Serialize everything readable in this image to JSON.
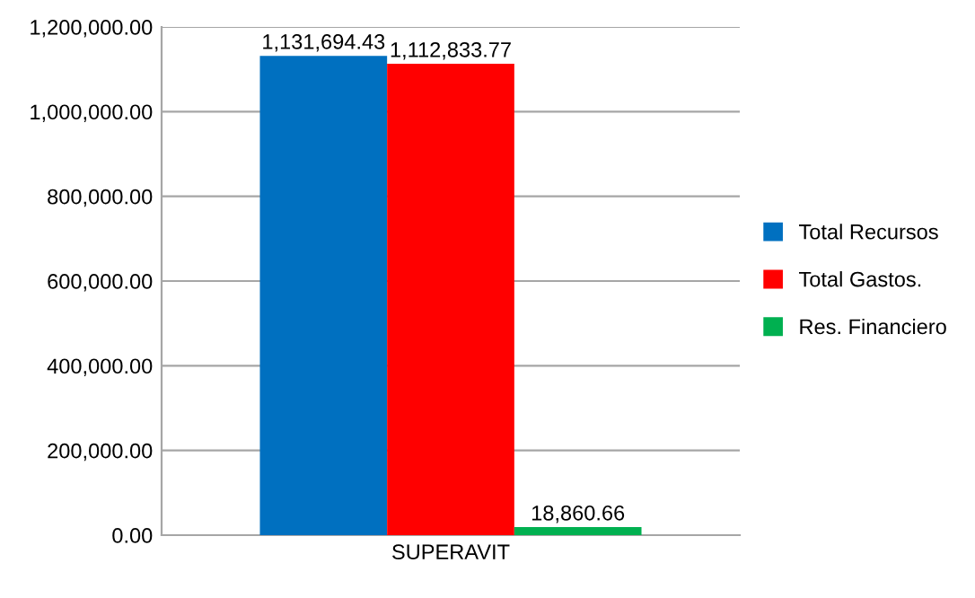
{
  "chart_data": {
    "type": "bar",
    "categories": [
      "SUPERAVIT"
    ],
    "series": [
      {
        "name": "Total Recursos",
        "color": "#0070c0",
        "values": [
          1131694.43
        ],
        "value_labels": [
          "1,131,694.43"
        ]
      },
      {
        "name": "Total Gastos.",
        "color": "#ff0000",
        "values": [
          1112833.77
        ],
        "value_labels": [
          "1,112,833.77"
        ]
      },
      {
        "name": "Res. Financiero",
        "color": "#00b050",
        "values": [
          18860.66
        ],
        "value_labels": [
          "18,860.66"
        ]
      }
    ],
    "ylim": [
      0,
      1200000
    ],
    "yticks": [
      {
        "value": 0,
        "label": "0.00"
      },
      {
        "value": 200000,
        "label": "200,000.00"
      },
      {
        "value": 400000,
        "label": "400,000.00"
      },
      {
        "value": 600000,
        "label": "600,000.00"
      },
      {
        "value": 800000,
        "label": "800,000.00"
      },
      {
        "value": 1000000,
        "label": "1,000,000.00"
      },
      {
        "value": 1200000,
        "label": "1,200,000.00"
      }
    ],
    "grid": "y",
    "legend": "right"
  }
}
